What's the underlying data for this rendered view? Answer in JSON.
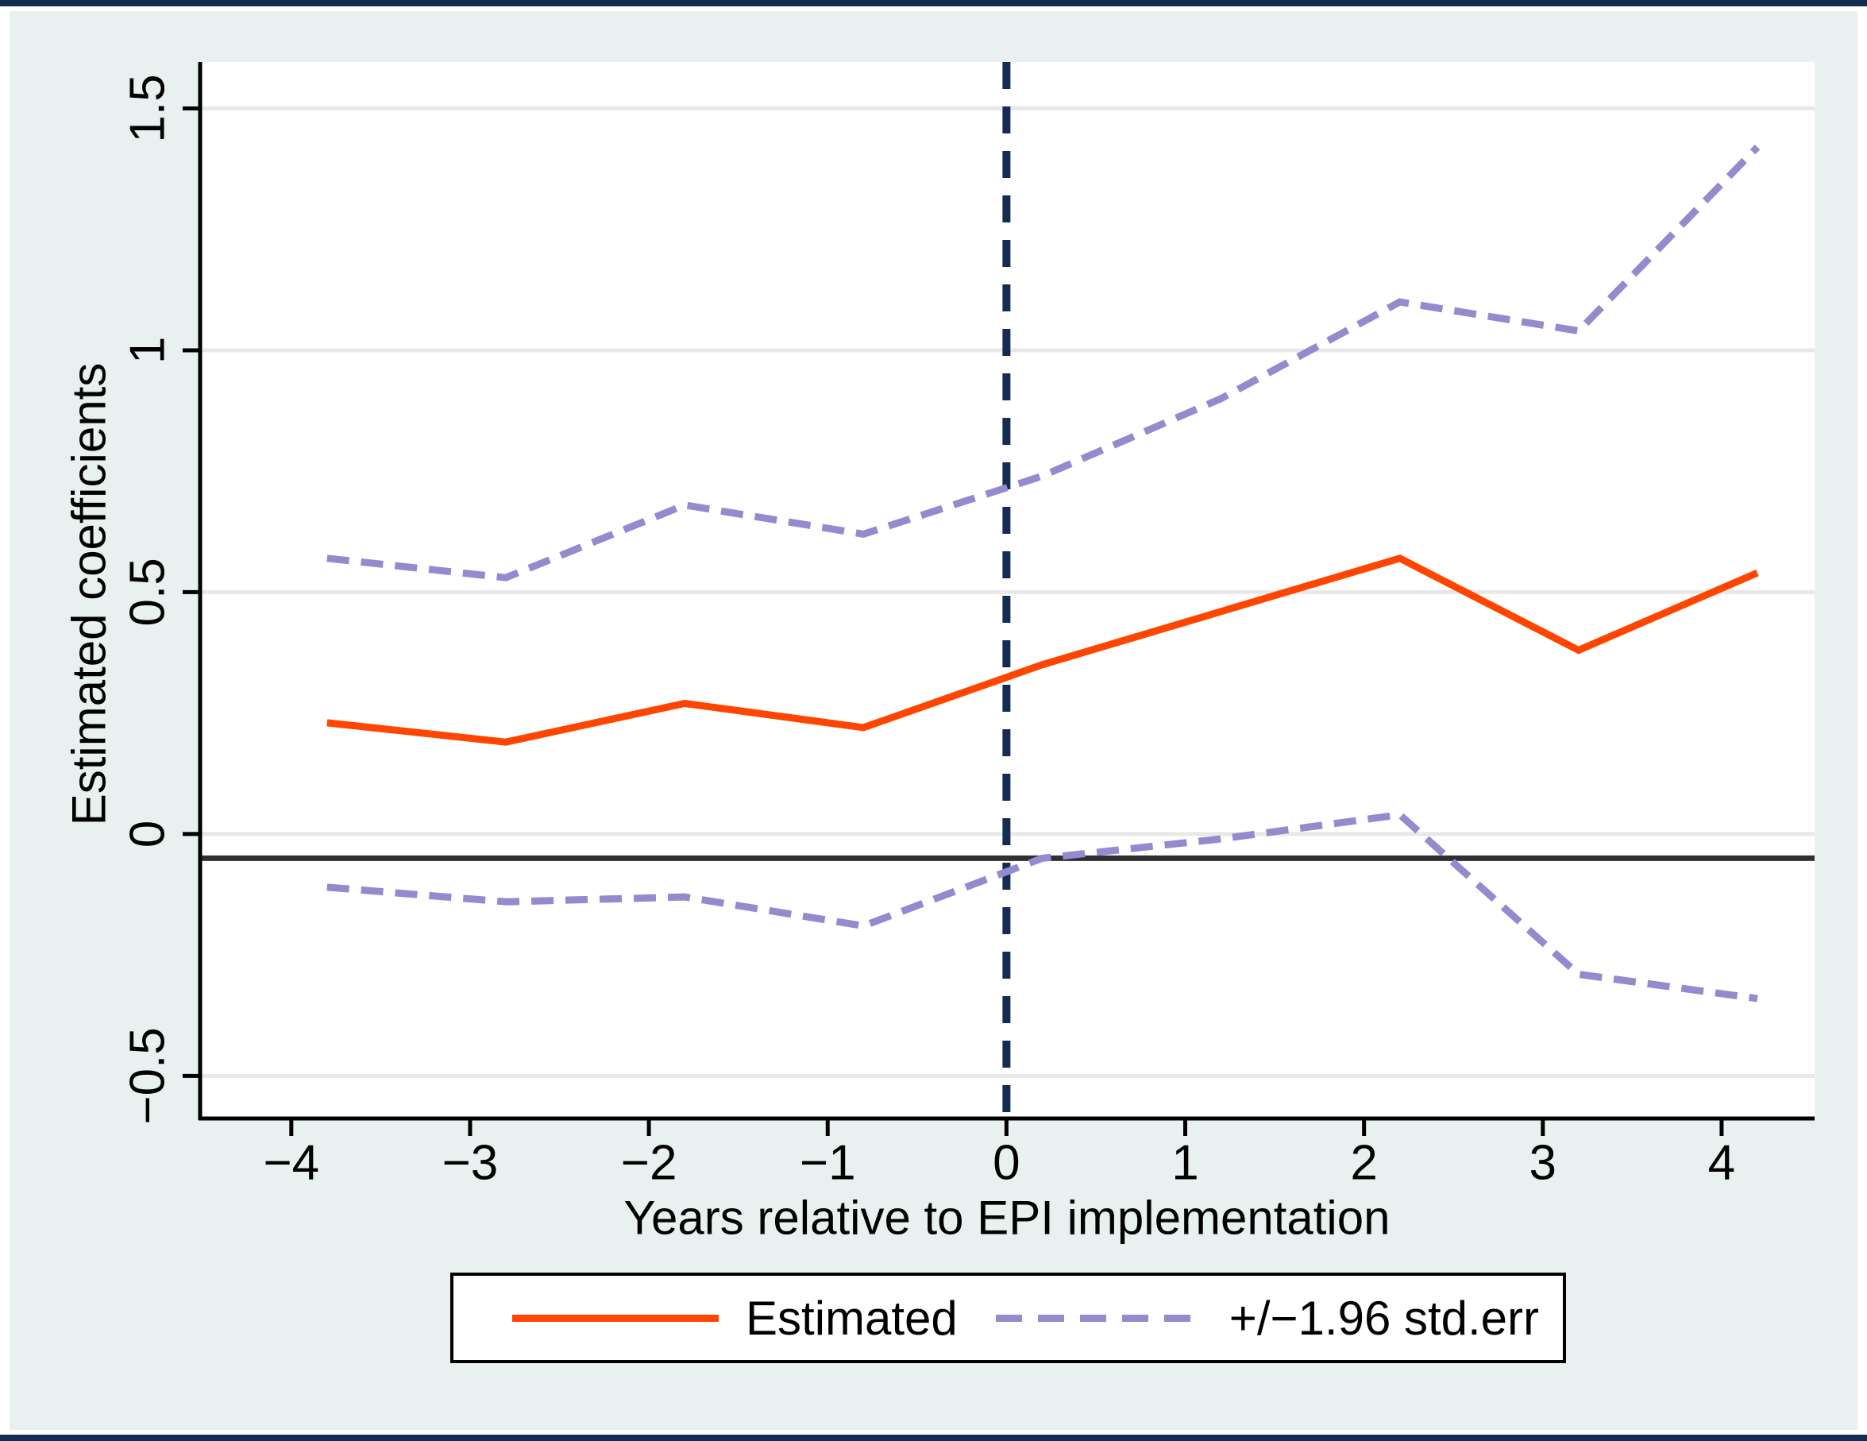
{
  "figure": {
    "background": "#ffffff",
    "panel_color": "#e8f1f0",
    "edge_bar_color": "#122c52"
  },
  "chart_data": {
    "type": "line",
    "title": "",
    "x_title": "Years relative to EPI implementation",
    "y_title": "Estimated coefficients",
    "x": [
      -3.8,
      -2.8,
      -1.8,
      -0.8,
      0.2,
      1.2,
      2.2,
      3.2,
      4.2
    ],
    "series": [
      {
        "name": "Estimated",
        "values": [
          0.23,
          0.19,
          0.27,
          0.22,
          0.35,
          0.46,
          0.57,
          0.38,
          0.54
        ],
        "color": "#ff4500",
        "style": "solid"
      },
      {
        "name": "+1.96 std.err",
        "values": [
          0.57,
          0.53,
          0.68,
          0.62,
          0.74,
          0.9,
          1.1,
          1.04,
          1.42
        ],
        "color": "#938bce",
        "style": "dashed"
      },
      {
        "name": "-1.96 std.err",
        "values": [
          -0.11,
          -0.14,
          -0.13,
          -0.19,
          -0.05,
          -0.01,
          0.04,
          -0.29,
          -0.34
        ],
        "color": "#938bce",
        "style": "dashed"
      }
    ],
    "x_ticks": {
      "values": [
        -4,
        -3,
        -2,
        -1,
        0,
        1,
        2,
        3,
        4
      ],
      "labels": [
        "−4",
        "−3",
        "−2",
        "−1",
        "0",
        "1",
        "2",
        "3",
        "4"
      ]
    },
    "y_ticks": {
      "values": [
        1.5,
        1,
        0.5,
        0,
        -0.5
      ],
      "labels": [
        "1.5",
        "1",
        "0.5",
        "0",
        "−0.5"
      ]
    },
    "xlim": [
      -4.51,
      4.52
    ],
    "ylim": [
      -0.588,
      1.596
    ],
    "grid": "horizontal",
    "gridline_color": "#e8e8e8",
    "plot_background": "#ffffff",
    "reference_line_y": -0.05,
    "reference_line_color": "#303030",
    "event_line_x": 0,
    "event_line_color": "#122c52",
    "legend_position": "bottom"
  },
  "legend": {
    "items": [
      {
        "label": "Estimated",
        "line_style": "solid",
        "color": "#ff4500"
      },
      {
        "label": "+/−1.96 std.err",
        "line_style": "dashed",
        "color": "#938bce"
      }
    ]
  }
}
